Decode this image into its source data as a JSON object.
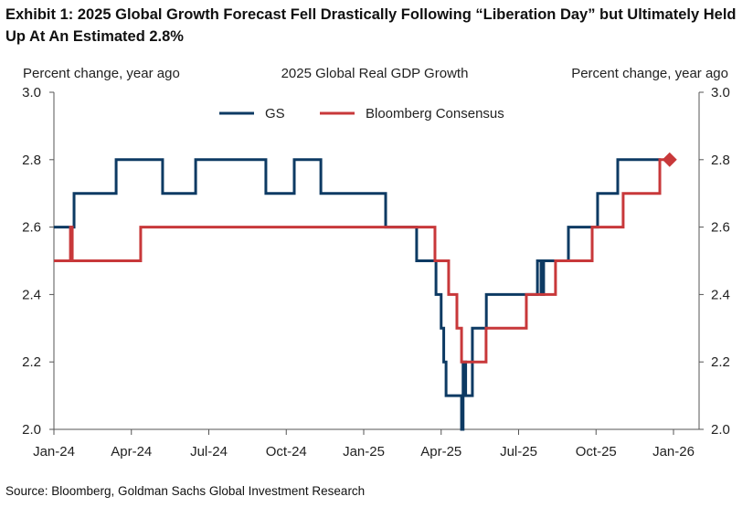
{
  "title": "Exhibit 1: 2025 Global Growth Forecast Fell Drastically Following “Liberation Day” but Ultimately Held Up At An Estimated 2.8%",
  "source": "Source: Bloomberg, Goldman Sachs Global Investment Research",
  "colors": {
    "gs": "#0d3a63",
    "consensus": "#c8383a"
  },
  "chart_data": {
    "type": "line",
    "title": "2025 Global Real GDP Growth",
    "ylabel_left": "Percent change, year ago",
    "ylabel_right": "Percent change, year ago",
    "x_unit": "months since Jan-24",
    "xlim": [
      0,
      24
    ],
    "ylim": [
      2.0,
      3.0
    ],
    "x_ticks": [
      0,
      3,
      6,
      9,
      12,
      15,
      18,
      21,
      24
    ],
    "x_tick_labels": [
      "Jan-24",
      "Apr-24",
      "Jul-24",
      "Oct-24",
      "Jan-25",
      "Apr-25",
      "Jul-25",
      "Oct-25",
      "Jan-26"
    ],
    "y_ticks": [
      2.0,
      2.2,
      2.4,
      2.6,
      2.8,
      3.0
    ],
    "y_tick_labels": [
      "2.0",
      "2.2",
      "2.4",
      "2.6",
      "2.8",
      "3.0"
    ],
    "legend_position": "top-center",
    "series": [
      {
        "name": "GS",
        "step": true,
        "points": [
          [
            0,
            2.6
          ],
          [
            0.78,
            2.7
          ],
          [
            2.41,
            2.8
          ],
          [
            4.21,
            2.7
          ],
          [
            5.49,
            2.8
          ],
          [
            8.21,
            2.7
          ],
          [
            9.31,
            2.8
          ],
          [
            10.34,
            2.7
          ],
          [
            12.85,
            2.6
          ],
          [
            14.05,
            2.5
          ],
          [
            14.8,
            2.4
          ],
          [
            15.0,
            2.3
          ],
          [
            15.1,
            2.2
          ],
          [
            15.19,
            2.1
          ],
          [
            15.79,
            2.0
          ],
          [
            15.85,
            2.2
          ],
          [
            15.95,
            2.1
          ],
          [
            16.21,
            2.3
          ],
          [
            16.75,
            2.4
          ],
          [
            18.73,
            2.5
          ],
          [
            18.87,
            2.4
          ],
          [
            18.97,
            2.5
          ],
          [
            19.93,
            2.6
          ],
          [
            21.06,
            2.7
          ],
          [
            21.84,
            2.8
          ],
          [
            23.5,
            2.8
          ]
        ]
      },
      {
        "name": "Bloomberg Consensus",
        "step": true,
        "points": [
          [
            0,
            2.5
          ],
          [
            0.64,
            2.6
          ],
          [
            0.71,
            2.5
          ],
          [
            3.36,
            2.6
          ],
          [
            14.76,
            2.5
          ],
          [
            15.29,
            2.4
          ],
          [
            15.61,
            2.3
          ],
          [
            15.79,
            2.2
          ],
          [
            16.74,
            2.3
          ],
          [
            18.3,
            2.4
          ],
          [
            19.43,
            2.5
          ],
          [
            20.85,
            2.6
          ],
          [
            22.05,
            2.7
          ],
          [
            23.47,
            2.8
          ],
          [
            23.85,
            2.8
          ]
        ],
        "marker_last": "diamond"
      }
    ]
  }
}
